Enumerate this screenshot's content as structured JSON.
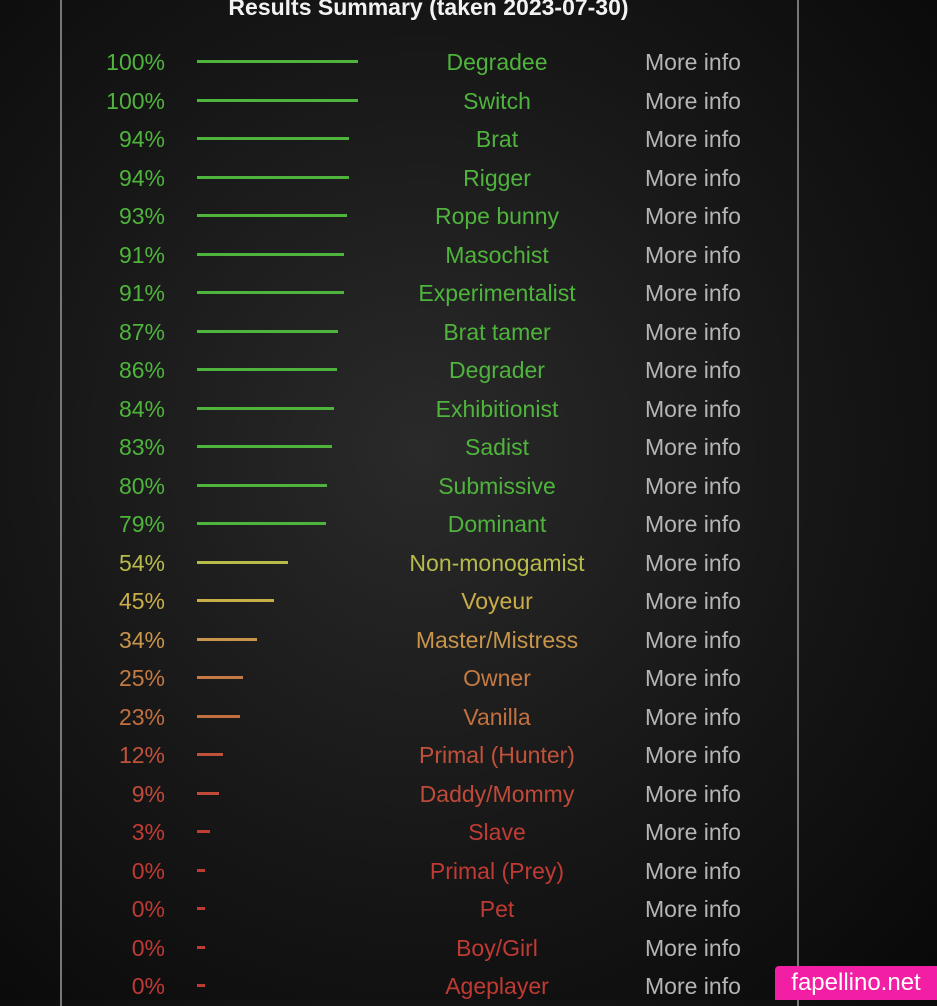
{
  "header": {
    "title": "Results Summary (taken 2023-07-30)"
  },
  "results": [
    {
      "value": 100,
      "value_label": "100%",
      "name": "Degradee",
      "color": "#4fb43c",
      "link": "More info"
    },
    {
      "value": 100,
      "value_label": "100%",
      "name": "Switch",
      "color": "#4fb43c",
      "link": "More info"
    },
    {
      "value": 94,
      "value_label": "94%",
      "name": "Brat",
      "color": "#4fb43c",
      "link": "More info"
    },
    {
      "value": 94,
      "value_label": "94%",
      "name": "Rigger",
      "color": "#4fb43c",
      "link": "More info"
    },
    {
      "value": 93,
      "value_label": "93%",
      "name": "Rope bunny",
      "color": "#4fb43c",
      "link": "More info"
    },
    {
      "value": 91,
      "value_label": "91%",
      "name": "Masochist",
      "color": "#4fb43c",
      "link": "More info"
    },
    {
      "value": 91,
      "value_label": "91%",
      "name": "Experimentalist",
      "color": "#4fb43c",
      "link": "More info"
    },
    {
      "value": 87,
      "value_label": "87%",
      "name": "Brat tamer",
      "color": "#4fb43c",
      "link": "More info"
    },
    {
      "value": 86,
      "value_label": "86%",
      "name": "Degrader",
      "color": "#4fb43c",
      "link": "More info"
    },
    {
      "value": 84,
      "value_label": "84%",
      "name": "Exhibitionist",
      "color": "#4fb43c",
      "link": "More info"
    },
    {
      "value": 83,
      "value_label": "83%",
      "name": "Sadist",
      "color": "#4fb43c",
      "link": "More info"
    },
    {
      "value": 80,
      "value_label": "80%",
      "name": "Submissive",
      "color": "#4fb43c",
      "link": "More info"
    },
    {
      "value": 79,
      "value_label": "79%",
      "name": "Dominant",
      "color": "#4fb43c",
      "link": "More info"
    },
    {
      "value": 54,
      "value_label": "54%",
      "name": "Non-monogamist",
      "color": "#b7bb4a",
      "link": "More info"
    },
    {
      "value": 45,
      "value_label": "45%",
      "name": "Voyeur",
      "color": "#c9ae48",
      "link": "More info"
    },
    {
      "value": 34,
      "value_label": "34%",
      "name": "Master/Mistress",
      "color": "#c8954a",
      "link": "More info"
    },
    {
      "value": 25,
      "value_label": "25%",
      "name": "Owner",
      "color": "#c47a42",
      "link": "More info"
    },
    {
      "value": 23,
      "value_label": "23%",
      "name": "Vanilla",
      "color": "#c2703f",
      "link": "More info"
    },
    {
      "value": 12,
      "value_label": "12%",
      "name": "Primal (Hunter)",
      "color": "#c1523a",
      "link": "More info"
    },
    {
      "value": 9,
      "value_label": "9%",
      "name": "Daddy/Mommy",
      "color": "#c04a38",
      "link": "More info"
    },
    {
      "value": 3,
      "value_label": "3%",
      "name": "Slave",
      "color": "#c03c35",
      "link": "More info"
    },
    {
      "value": 0,
      "value_label": "0%",
      "name": "Primal (Prey)",
      "color": "#c03a34",
      "link": "More info"
    },
    {
      "value": 0,
      "value_label": "0%",
      "name": "Pet",
      "color": "#c03a34",
      "link": "More info"
    },
    {
      "value": 0,
      "value_label": "0%",
      "name": "Boy/Girl",
      "color": "#c03a34",
      "link": "More info"
    },
    {
      "value": 0,
      "value_label": "0%",
      "name": "Ageplayer",
      "color": "#c03a34",
      "link": "More info"
    }
  ],
  "watermark": "fapellino.net"
}
